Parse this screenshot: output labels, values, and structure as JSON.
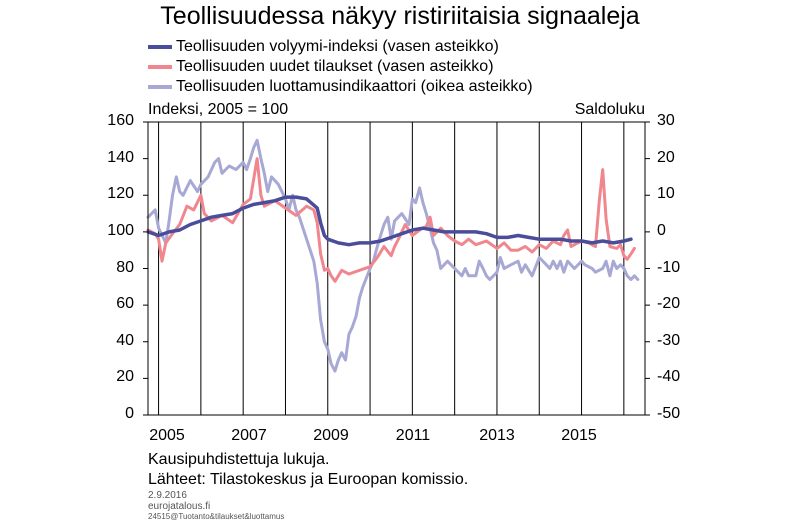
{
  "chart_data": {
    "type": "line",
    "title": "Teollisuudessa näkyy ristiriitaisia signaaleja",
    "left_axis_label": "Indeksi, 2005 = 100",
    "right_axis_label": "Saldoluku",
    "ylim_left": [
      0,
      160
    ],
    "ylim_right": [
      -50,
      30
    ],
    "yticks_left": [
      "0",
      "20",
      "40",
      "60",
      "80",
      "100",
      "120",
      "140",
      "160"
    ],
    "yticks_right": [
      "-50",
      "-40",
      "-30",
      "-20",
      "-10",
      "0",
      "10",
      "20",
      "30"
    ],
    "xlim": [
      2004.75,
      2016.5
    ],
    "xticks": [
      "2005",
      "2007",
      "2009",
      "2011",
      "2013",
      "2015"
    ],
    "grid": "vertical lines at year boundaries",
    "legend_position": "top",
    "series": [
      {
        "name": "Teollisuuden volyymi-indeksi (vasen asteikko)",
        "axis": "left",
        "color": "#4a4d99",
        "points": [
          [
            2004.75,
            100
          ],
          [
            2005.0,
            98
          ],
          [
            2005.25,
            100
          ],
          [
            2005.5,
            101
          ],
          [
            2005.75,
            104
          ],
          [
            2006.0,
            106
          ],
          [
            2006.25,
            108
          ],
          [
            2006.5,
            109
          ],
          [
            2006.75,
            110
          ],
          [
            2007.0,
            113
          ],
          [
            2007.25,
            115
          ],
          [
            2007.5,
            116
          ],
          [
            2007.75,
            117
          ],
          [
            2008.0,
            119
          ],
          [
            2008.25,
            119
          ],
          [
            2008.5,
            118
          ],
          [
            2008.75,
            113
          ],
          [
            2008.83,
            105
          ],
          [
            2008.92,
            98
          ],
          [
            2009.0,
            96
          ],
          [
            2009.25,
            94
          ],
          [
            2009.5,
            93
          ],
          [
            2009.75,
            94
          ],
          [
            2010.0,
            94
          ],
          [
            2010.25,
            95
          ],
          [
            2010.5,
            97
          ],
          [
            2010.75,
            99
          ],
          [
            2011.0,
            101
          ],
          [
            2011.25,
            102
          ],
          [
            2011.5,
            101
          ],
          [
            2011.75,
            100
          ],
          [
            2012.0,
            100
          ],
          [
            2012.25,
            100
          ],
          [
            2012.5,
            100
          ],
          [
            2012.75,
            99
          ],
          [
            2013.0,
            97
          ],
          [
            2013.25,
            97
          ],
          [
            2013.5,
            98
          ],
          [
            2013.75,
            97
          ],
          [
            2014.0,
            96
          ],
          [
            2014.25,
            96
          ],
          [
            2014.5,
            96
          ],
          [
            2014.75,
            95
          ],
          [
            2015.0,
            95
          ],
          [
            2015.25,
            94
          ],
          [
            2015.5,
            95
          ],
          [
            2015.75,
            94
          ],
          [
            2016.0,
            95
          ],
          [
            2016.17,
            96
          ]
        ]
      },
      {
        "name": "Teollisuuden uudet tilaukset (vasen asteikko)",
        "axis": "left",
        "color": "#f0868e",
        "points": [
          [
            2004.75,
            101
          ],
          [
            2004.92,
            99
          ],
          [
            2005.0,
            96
          ],
          [
            2005.08,
            84
          ],
          [
            2005.17,
            94
          ],
          [
            2005.33,
            99
          ],
          [
            2005.5,
            104
          ],
          [
            2005.67,
            114
          ],
          [
            2005.83,
            112
          ],
          [
            2006.0,
            120
          ],
          [
            2006.08,
            110
          ],
          [
            2006.25,
            106
          ],
          [
            2006.5,
            109
          ],
          [
            2006.75,
            105
          ],
          [
            2007.0,
            115
          ],
          [
            2007.17,
            118
          ],
          [
            2007.33,
            140
          ],
          [
            2007.42,
            120
          ],
          [
            2007.5,
            114
          ],
          [
            2007.75,
            117
          ],
          [
            2008.0,
            113
          ],
          [
            2008.25,
            109
          ],
          [
            2008.5,
            114
          ],
          [
            2008.67,
            112
          ],
          [
            2008.75,
            105
          ],
          [
            2008.83,
            88
          ],
          [
            2008.92,
            79
          ],
          [
            2009.0,
            80
          ],
          [
            2009.08,
            76
          ],
          [
            2009.17,
            73
          ],
          [
            2009.33,
            79
          ],
          [
            2009.5,
            77
          ],
          [
            2009.75,
            79
          ],
          [
            2010.0,
            81
          ],
          [
            2010.17,
            86
          ],
          [
            2010.33,
            92
          ],
          [
            2010.5,
            87
          ],
          [
            2010.58,
            92
          ],
          [
            2010.67,
            96
          ],
          [
            2010.83,
            104
          ],
          [
            2011.0,
            98
          ],
          [
            2011.17,
            101
          ],
          [
            2011.33,
            103
          ],
          [
            2011.42,
            108
          ],
          [
            2011.5,
            98
          ],
          [
            2011.67,
            102
          ],
          [
            2011.83,
            98
          ],
          [
            2012.0,
            95
          ],
          [
            2012.17,
            93
          ],
          [
            2012.33,
            96
          ],
          [
            2012.5,
            93
          ],
          [
            2012.75,
            95
          ],
          [
            2013.0,
            91
          ],
          [
            2013.17,
            94
          ],
          [
            2013.33,
            90
          ],
          [
            2013.5,
            90
          ],
          [
            2013.67,
            92
          ],
          [
            2013.83,
            89
          ],
          [
            2014.0,
            93
          ],
          [
            2014.17,
            91
          ],
          [
            2014.33,
            95
          ],
          [
            2014.5,
            93
          ],
          [
            2014.58,
            98
          ],
          [
            2014.67,
            101
          ],
          [
            2014.75,
            92
          ],
          [
            2014.83,
            93
          ],
          [
            2015.0,
            95
          ],
          [
            2015.17,
            94
          ],
          [
            2015.33,
            92
          ],
          [
            2015.42,
            117
          ],
          [
            2015.5,
            134
          ],
          [
            2015.58,
            107
          ],
          [
            2015.67,
            92
          ],
          [
            2015.83,
            91
          ],
          [
            2015.92,
            93
          ],
          [
            2016.0,
            87
          ],
          [
            2016.08,
            85
          ],
          [
            2016.17,
            88
          ],
          [
            2016.25,
            91
          ]
        ]
      },
      {
        "name": "Teollisuuden luottamusindikaattori (oikea asteikko)",
        "axis": "right",
        "color": "#a7a8d4",
        "points": [
          [
            2004.75,
            4
          ],
          [
            2004.92,
            6
          ],
          [
            2005.0,
            1
          ],
          [
            2005.17,
            -3
          ],
          [
            2005.25,
            3
          ],
          [
            2005.33,
            10
          ],
          [
            2005.42,
            15
          ],
          [
            2005.5,
            11
          ],
          [
            2005.58,
            10
          ],
          [
            2005.75,
            14
          ],
          [
            2005.92,
            11
          ],
          [
            2006.0,
            13
          ],
          [
            2006.17,
            15
          ],
          [
            2006.33,
            19
          ],
          [
            2006.42,
            20
          ],
          [
            2006.5,
            16
          ],
          [
            2006.67,
            18
          ],
          [
            2006.83,
            17
          ],
          [
            2007.0,
            19
          ],
          [
            2007.08,
            17
          ],
          [
            2007.17,
            20
          ],
          [
            2007.25,
            23
          ],
          [
            2007.33,
            25
          ],
          [
            2007.42,
            20
          ],
          [
            2007.5,
            16
          ],
          [
            2007.58,
            11
          ],
          [
            2007.67,
            15
          ],
          [
            2007.83,
            13
          ],
          [
            2008.0,
            9
          ],
          [
            2008.08,
            6
          ],
          [
            2008.17,
            10
          ],
          [
            2008.25,
            6
          ],
          [
            2008.33,
            4
          ],
          [
            2008.5,
            -2
          ],
          [
            2008.67,
            -8
          ],
          [
            2008.75,
            -14
          ],
          [
            2008.83,
            -24
          ],
          [
            2008.92,
            -30
          ],
          [
            2009.0,
            -32
          ],
          [
            2009.08,
            -36
          ],
          [
            2009.17,
            -38
          ],
          [
            2009.25,
            -35
          ],
          [
            2009.33,
            -33
          ],
          [
            2009.42,
            -35
          ],
          [
            2009.5,
            -28
          ],
          [
            2009.58,
            -26
          ],
          [
            2009.67,
            -23
          ],
          [
            2009.75,
            -18
          ],
          [
            2009.83,
            -15
          ],
          [
            2010.0,
            -10
          ],
          [
            2010.08,
            -8
          ],
          [
            2010.17,
            -4
          ],
          [
            2010.25,
            -1
          ],
          [
            2010.33,
            2
          ],
          [
            2010.42,
            4
          ],
          [
            2010.5,
            -2
          ],
          [
            2010.58,
            3
          ],
          [
            2010.75,
            5
          ],
          [
            2010.92,
            2
          ],
          [
            2011.0,
            9
          ],
          [
            2011.08,
            8
          ],
          [
            2011.17,
            12
          ],
          [
            2011.25,
            8
          ],
          [
            2011.33,
            5
          ],
          [
            2011.42,
            1
          ],
          [
            2011.5,
            -3
          ],
          [
            2011.58,
            -5
          ],
          [
            2011.67,
            -10
          ],
          [
            2011.75,
            -9
          ],
          [
            2011.83,
            -8
          ],
          [
            2012.0,
            -10
          ],
          [
            2012.17,
            -12
          ],
          [
            2012.25,
            -10
          ],
          [
            2012.33,
            -12
          ],
          [
            2012.5,
            -12
          ],
          [
            2012.58,
            -8
          ],
          [
            2012.67,
            -10
          ],
          [
            2012.75,
            -12
          ],
          [
            2012.83,
            -13
          ],
          [
            2013.0,
            -11
          ],
          [
            2013.08,
            -7
          ],
          [
            2013.17,
            -10
          ],
          [
            2013.33,
            -9
          ],
          [
            2013.5,
            -8
          ],
          [
            2013.58,
            -11
          ],
          [
            2013.67,
            -9
          ],
          [
            2013.83,
            -12
          ],
          [
            2014.0,
            -7
          ],
          [
            2014.17,
            -9
          ],
          [
            2014.25,
            -10
          ],
          [
            2014.33,
            -8
          ],
          [
            2014.42,
            -10
          ],
          [
            2014.5,
            -8
          ],
          [
            2014.58,
            -11
          ],
          [
            2014.67,
            -8
          ],
          [
            2014.83,
            -10
          ],
          [
            2015.0,
            -8
          ],
          [
            2015.08,
            -9
          ],
          [
            2015.25,
            -10
          ],
          [
            2015.33,
            -11
          ],
          [
            2015.5,
            -10
          ],
          [
            2015.58,
            -8
          ],
          [
            2015.67,
            -12
          ],
          [
            2015.75,
            -8
          ],
          [
            2015.83,
            -10
          ],
          [
            2015.92,
            -9
          ],
          [
            2016.0,
            -10
          ],
          [
            2016.08,
            -12
          ],
          [
            2016.17,
            -13
          ],
          [
            2016.25,
            -12
          ],
          [
            2016.33,
            -13
          ]
        ]
      }
    ]
  },
  "notes": {
    "adjustment": "Kausipuhdistettuja lukuja.",
    "sources": "Lähteet: Tilastokeskus ja Euroopan komissio.",
    "date": "2.9.2016",
    "site": "eurojatalous.fi",
    "code": "24515@Tuotanto&tilaukset&luottamus"
  }
}
